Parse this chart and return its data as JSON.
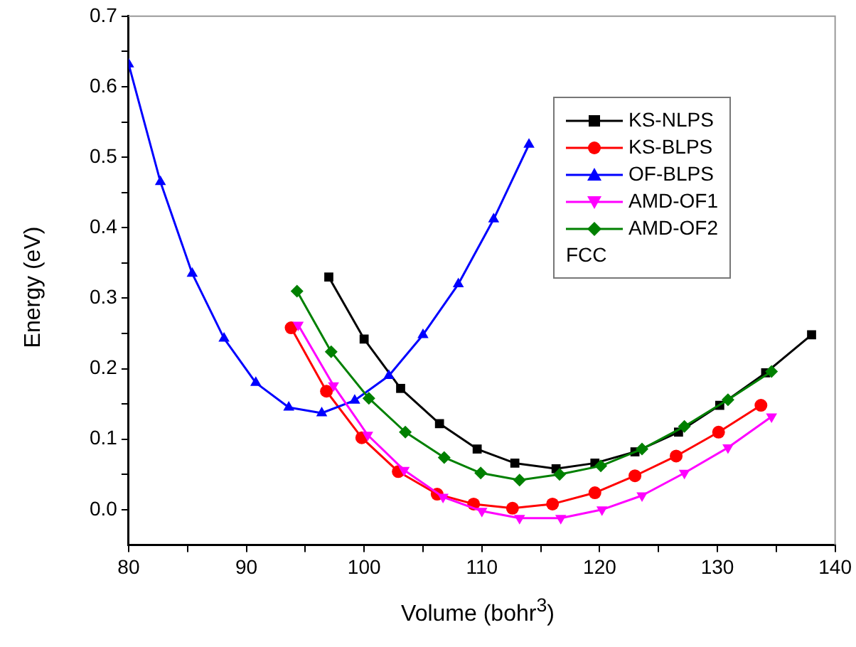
{
  "chart_data": {
    "type": "line",
    "xlabel": "Volume (bohr$^{3}$)",
    "ylabel": "Energy (eV)",
    "xlim": [
      80,
      140
    ],
    "xticks": [
      80,
      {
        "value": 85,
        "label": null
      },
      90,
      {
        "value": 95,
        "label": null
      },
      100,
      {
        "value": 105,
        "label": null
      },
      110,
      {
        "value": 115,
        "label": null
      },
      120,
      {
        "value": 125,
        "label": null
      },
      130,
      {
        "value": 135,
        "label": null
      },
      140
    ],
    "ylim": [
      -0.05,
      0.7
    ],
    "yticks": [
      {
        "value": 0,
        "label": "0.0"
      },
      {
        "value": 0.05,
        "label": null
      },
      0.1,
      {
        "value": 0.15,
        "label": null
      },
      0.2,
      {
        "value": 0.25,
        "label": null
      },
      0.3,
      {
        "value": 0.35,
        "label": null
      },
      0.4,
      {
        "value": 0.45,
        "label": null
      },
      0.5,
      {
        "value": 0.55,
        "label": null
      },
      0.6,
      {
        "value": 0.65,
        "label": null
      },
      0.7
    ],
    "grid": false,
    "legend": "top right",
    "annotations": [
      "FCC"
    ],
    "series": [
      {
        "name": "KS-NLPS",
        "color": "#000000",
        "marker": "square",
        "x": [
          97,
          100,
          103.1,
          106.4,
          109.6,
          112.8,
          116.3,
          119.6,
          123,
          126.7,
          130.2,
          134.1,
          138
        ],
        "values": [
          0.33,
          0.242,
          0.172,
          0.122,
          0.086,
          0.066,
          0.058,
          0.066,
          0.082,
          0.11,
          0.148,
          0.194,
          0.248
        ]
      },
      {
        "name": "KS-BLPS",
        "color": "#ff0000",
        "marker": "circle",
        "x": [
          93.8,
          96.8,
          99.8,
          102.9,
          106.2,
          109.3,
          112.6,
          116,
          119.6,
          123,
          126.5,
          130.1,
          133.7
        ],
        "values": [
          0.258,
          0.168,
          0.102,
          0.054,
          0.022,
          0.008,
          0.002,
          0.008,
          0.024,
          0.048,
          0.076,
          0.11,
          0.148
        ]
      },
      {
        "name": "OF-BLPS",
        "color": "#0000ff",
        "marker": "triangle",
        "x": [
          80,
          82.7,
          85.4,
          88.1,
          90.8,
          93.6,
          96.4,
          99.2,
          102.1,
          105,
          108,
          111,
          114
        ],
        "values": [
          0.632,
          0.465,
          0.335,
          0.243,
          0.18,
          0.145,
          0.137,
          0.155,
          0.19,
          0.248,
          0.32,
          0.412,
          0.518
        ]
      },
      {
        "name": "AMD-OF1",
        "color": "#ff00ff",
        "marker": "triangle-down",
        "x": [
          94.4,
          97.4,
          100.3,
          103.4,
          106.7,
          110,
          113.2,
          116.7,
          120.2,
          123.6,
          127.2,
          130.9,
          134.6
        ],
        "values": [
          0.262,
          0.176,
          0.106,
          0.056,
          0.018,
          -0.002,
          -0.012,
          -0.012,
          0,
          0.02,
          0.052,
          0.088,
          0.132
        ]
      },
      {
        "name": "AMD-OF2",
        "color": "#008000",
        "marker": "diamond",
        "x": [
          94.3,
          97.2,
          100.4,
          103.5,
          106.8,
          109.9,
          113.2,
          116.6,
          120.1,
          123.6,
          127.2,
          130.9,
          134.6
        ],
        "values": [
          0.31,
          0.224,
          0.158,
          0.11,
          0.074,
          0.052,
          0.042,
          0.05,
          0.062,
          0.086,
          0.118,
          0.156,
          0.196
        ]
      }
    ]
  }
}
